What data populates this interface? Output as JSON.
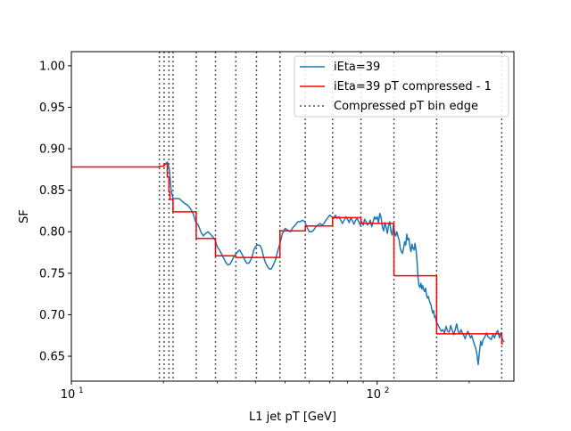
{
  "chart_data": {
    "type": "line",
    "title": "",
    "xlabel": "L1 jet pT [GeV]",
    "ylabel": "SF",
    "xscale": "log",
    "xlim": [
      10,
      280
    ],
    "ylim": [
      0.62,
      1.017
    ],
    "x_major_ticks": [
      {
        "value": 10,
        "base": "10",
        "exp": "1"
      },
      {
        "value": 100,
        "base": "10",
        "exp": "2"
      }
    ],
    "y_ticks": [
      0.65,
      0.7,
      0.75,
      0.8,
      0.85,
      0.9,
      0.95,
      1.0
    ],
    "y_tick_labels": [
      "0.65",
      "0.70",
      "0.75",
      "0.80",
      "0.85",
      "0.90",
      "0.95",
      "1.00"
    ],
    "legend_position": "top-right",
    "grid": false,
    "series": [
      {
        "name": "iEta=39",
        "style": "line",
        "color": "#1f77b4",
        "points": [
          [
            20.0,
            0.88
          ],
          [
            20.3,
            0.881
          ],
          [
            20.6,
            0.884
          ],
          [
            20.9,
            0.876
          ],
          [
            21.2,
            0.85
          ],
          [
            21.5,
            0.84
          ],
          [
            22.0,
            0.84
          ],
          [
            22.5,
            0.84
          ],
          [
            23.0,
            0.837
          ],
          [
            23.5,
            0.834
          ],
          [
            24.0,
            0.832
          ],
          [
            24.5,
            0.828
          ],
          [
            25.0,
            0.822
          ],
          [
            25.5,
            0.812
          ],
          [
            26.0,
            0.808
          ],
          [
            26.5,
            0.8
          ],
          [
            27.0,
            0.795
          ],
          [
            27.5,
            0.798
          ],
          [
            28.0,
            0.8
          ],
          [
            28.5,
            0.797
          ],
          [
            29.0,
            0.794
          ],
          [
            29.5,
            0.79
          ],
          [
            30.0,
            0.782
          ],
          [
            30.5,
            0.778
          ],
          [
            31.0,
            0.773
          ],
          [
            31.5,
            0.768
          ],
          [
            32.0,
            0.763
          ],
          [
            32.5,
            0.76
          ],
          [
            33.0,
            0.761
          ],
          [
            33.5,
            0.765
          ],
          [
            34.0,
            0.77
          ],
          [
            34.5,
            0.773
          ],
          [
            35.0,
            0.776
          ],
          [
            35.5,
            0.778
          ],
          [
            36.0,
            0.774
          ],
          [
            36.5,
            0.77
          ],
          [
            37.0,
            0.765
          ],
          [
            37.5,
            0.762
          ],
          [
            38.0,
            0.762
          ],
          [
            38.5,
            0.765
          ],
          [
            39.0,
            0.77
          ],
          [
            39.5,
            0.778
          ],
          [
            40.0,
            0.782
          ],
          [
            40.5,
            0.784
          ],
          [
            41.0,
            0.784
          ],
          [
            41.5,
            0.783
          ],
          [
            42.0,
            0.778
          ],
          [
            42.5,
            0.77
          ],
          [
            43.0,
            0.764
          ],
          [
            43.5,
            0.76
          ],
          [
            44.0,
            0.757
          ],
          [
            44.5,
            0.755
          ],
          [
            45.0,
            0.755
          ],
          [
            45.5,
            0.758
          ],
          [
            46.0,
            0.762
          ],
          [
            46.5,
            0.766
          ],
          [
            47.0,
            0.773
          ],
          [
            48.0,
            0.785
          ],
          [
            49.0,
            0.798
          ],
          [
            50.0,
            0.804
          ],
          [
            51.0,
            0.802
          ],
          [
            52.0,
            0.8
          ],
          [
            53.0,
            0.805
          ],
          [
            54.0,
            0.808
          ],
          [
            55.0,
            0.812
          ],
          [
            56.0,
            0.812
          ],
          [
            57.0,
            0.814
          ],
          [
            58.0,
            0.812
          ],
          [
            59.0,
            0.805
          ],
          [
            60.0,
            0.8
          ],
          [
            61.0,
            0.8
          ],
          [
            62.0,
            0.802
          ],
          [
            63.0,
            0.806
          ],
          [
            64.0,
            0.808
          ],
          [
            65.0,
            0.81
          ],
          [
            66.0,
            0.808
          ],
          [
            67.0,
            0.81
          ],
          [
            68.0,
            0.814
          ],
          [
            69.0,
            0.817
          ],
          [
            70.0,
            0.82
          ],
          [
            71.0,
            0.818
          ],
          [
            72.0,
            0.816
          ],
          [
            73.0,
            0.82
          ],
          [
            74.0,
            0.816
          ],
          [
            75.0,
            0.818
          ],
          [
            76.0,
            0.814
          ],
          [
            77.0,
            0.81
          ],
          [
            78.0,
            0.814
          ],
          [
            79.0,
            0.818
          ],
          [
            80.0,
            0.815
          ],
          [
            81.0,
            0.811
          ],
          [
            82.0,
            0.817
          ],
          [
            83.0,
            0.813
          ],
          [
            84.0,
            0.809
          ],
          [
            85.0,
            0.814
          ],
          [
            86.0,
            0.816
          ],
          [
            87.0,
            0.812
          ],
          [
            88.0,
            0.808
          ],
          [
            89.0,
            0.812
          ],
          [
            90.0,
            0.808
          ],
          [
            91.0,
            0.815
          ],
          [
            92.0,
            0.812
          ],
          [
            93.0,
            0.808
          ],
          [
            94.0,
            0.81
          ],
          [
            95.0,
            0.814
          ],
          [
            96.0,
            0.806
          ],
          [
            97.0,
            0.812
          ],
          [
            98.0,
            0.818
          ],
          [
            99.0,
            0.815
          ],
          [
            100.0,
            0.818
          ],
          [
            101.0,
            0.811
          ],
          [
            102.0,
            0.822
          ],
          [
            103.0,
            0.817
          ],
          [
            104.0,
            0.806
          ],
          [
            105.0,
            0.801
          ],
          [
            106.0,
            0.811
          ],
          [
            107.0,
            0.805
          ],
          [
            108.0,
            0.798
          ],
          [
            109.0,
            0.808
          ],
          [
            110.0,
            0.812
          ],
          [
            111.0,
            0.8
          ],
          [
            112.0,
            0.796
          ],
          [
            113.0,
            0.808
          ],
          [
            114.0,
            0.8
          ],
          [
            115.0,
            0.795
          ],
          [
            116.0,
            0.8
          ],
          [
            117.0,
            0.794
          ],
          [
            118.0,
            0.79
          ],
          [
            119.0,
            0.78
          ],
          [
            120.0,
            0.776
          ],
          [
            121.0,
            0.774
          ],
          [
            122.0,
            0.78
          ],
          [
            123.0,
            0.788
          ],
          [
            124.0,
            0.784
          ],
          [
            125.0,
            0.797
          ],
          [
            126.0,
            0.79
          ],
          [
            127.0,
            0.792
          ],
          [
            128.0,
            0.782
          ],
          [
            129.0,
            0.776
          ],
          [
            130.0,
            0.785
          ],
          [
            131.0,
            0.78
          ],
          [
            132.0,
            0.778
          ],
          [
            133.0,
            0.786
          ],
          [
            134.0,
            0.778
          ],
          [
            135.0,
            0.765
          ],
          [
            136.0,
            0.745
          ],
          [
            137.0,
            0.735
          ],
          [
            138.0,
            0.733
          ],
          [
            139.0,
            0.738
          ],
          [
            140.0,
            0.731
          ],
          [
            141.0,
            0.735
          ],
          [
            142.0,
            0.73
          ],
          [
            143.0,
            0.728
          ],
          [
            144.0,
            0.732
          ],
          [
            145.0,
            0.724
          ],
          [
            146.0,
            0.72
          ],
          [
            147.0,
            0.722
          ],
          [
            148.0,
            0.718
          ],
          [
            149.0,
            0.714
          ],
          [
            150.0,
            0.712
          ],
          [
            151.0,
            0.706
          ],
          [
            152.0,
            0.702
          ],
          [
            153.0,
            0.705
          ],
          [
            154.0,
            0.697
          ],
          [
            155.0,
            0.698
          ],
          [
            156.0,
            0.692
          ],
          [
            157.0,
            0.69
          ],
          [
            158.0,
            0.688
          ],
          [
            159.0,
            0.686
          ],
          [
            160.0,
            0.684
          ],
          [
            162.0,
            0.68
          ],
          [
            164.0,
            0.682
          ],
          [
            166.0,
            0.678
          ],
          [
            168.0,
            0.686
          ],
          [
            170.0,
            0.68
          ],
          [
            172.0,
            0.679
          ],
          [
            174.0,
            0.687
          ],
          [
            176.0,
            0.681
          ],
          [
            178.0,
            0.676
          ],
          [
            180.0,
            0.682
          ],
          [
            182.0,
            0.689
          ],
          [
            184.0,
            0.68
          ],
          [
            186.0,
            0.677
          ],
          [
            188.0,
            0.682
          ],
          [
            190.0,
            0.678
          ],
          [
            192.0,
            0.675
          ],
          [
            194.0,
            0.671
          ],
          [
            196.0,
            0.677
          ],
          [
            198.0,
            0.68
          ],
          [
            200.0,
            0.676
          ],
          [
            202.0,
            0.672
          ],
          [
            204.0,
            0.675
          ],
          [
            206.0,
            0.669
          ],
          [
            208.0,
            0.664
          ],
          [
            210.0,
            0.66
          ],
          [
            212.0,
            0.652
          ],
          [
            214.0,
            0.64
          ],
          [
            216.0,
            0.655
          ],
          [
            218.0,
            0.668
          ],
          [
            220.0,
            0.663
          ],
          [
            222.0,
            0.67
          ],
          [
            224.0,
            0.672
          ],
          [
            226.0,
            0.675
          ],
          [
            228.0,
            0.678
          ],
          [
            230.0,
            0.674
          ],
          [
            233.0,
            0.672
          ],
          [
            236.0,
            0.67
          ],
          [
            239.0,
            0.676
          ],
          [
            242.0,
            0.672
          ],
          [
            245.0,
            0.678
          ],
          [
            248.0,
            0.681
          ],
          [
            251.0,
            0.672
          ],
          [
            254.0,
            0.678
          ],
          [
            257.0,
            0.67
          ],
          [
            260.0,
            0.667
          ]
        ]
      },
      {
        "name": "iEta=39 pT compressed - 1",
        "style": "step",
        "color": "#ff0000",
        "points": [
          [
            10,
            0.878
          ],
          [
            19.4,
            0.878
          ],
          [
            19.4,
            0.879
          ],
          [
            20.1,
            0.879
          ],
          [
            20.1,
            0.882
          ],
          [
            20.6,
            0.882
          ],
          [
            20.6,
            0.866
          ],
          [
            20.85,
            0.866
          ],
          [
            20.85,
            0.848
          ],
          [
            21.0,
            0.848
          ],
          [
            21.0,
            0.839
          ],
          [
            21.5,
            0.839
          ],
          [
            21.5,
            0.824
          ],
          [
            25.6,
            0.824
          ],
          [
            25.6,
            0.792
          ],
          [
            29.6,
            0.792
          ],
          [
            29.6,
            0.771
          ],
          [
            34.5,
            0.771
          ],
          [
            34.5,
            0.769
          ],
          [
            48.1,
            0.769
          ],
          [
            48.1,
            0.801
          ],
          [
            58.2,
            0.801
          ],
          [
            58.2,
            0.807
          ],
          [
            71.5,
            0.807
          ],
          [
            71.5,
            0.817
          ],
          [
            88.5,
            0.817
          ],
          [
            88.5,
            0.81
          ],
          [
            113.5,
            0.81
          ],
          [
            113.5,
            0.747
          ],
          [
            156.5,
            0.747
          ],
          [
            156.5,
            0.677
          ],
          [
            255.5,
            0.677
          ],
          [
            255.5,
            0.665
          ],
          [
            258,
            0.665
          ]
        ]
      },
      {
        "name": "Compressed pT bin edge",
        "style": "vlines",
        "color": "#555555",
        "x": [
          19.4,
          20.1,
          20.85,
          21.5,
          25.6,
          29.6,
          34.5,
          40.3,
          48.1,
          58.2,
          71.5,
          88.5,
          113.5,
          156.5,
          255.5
        ]
      }
    ]
  }
}
